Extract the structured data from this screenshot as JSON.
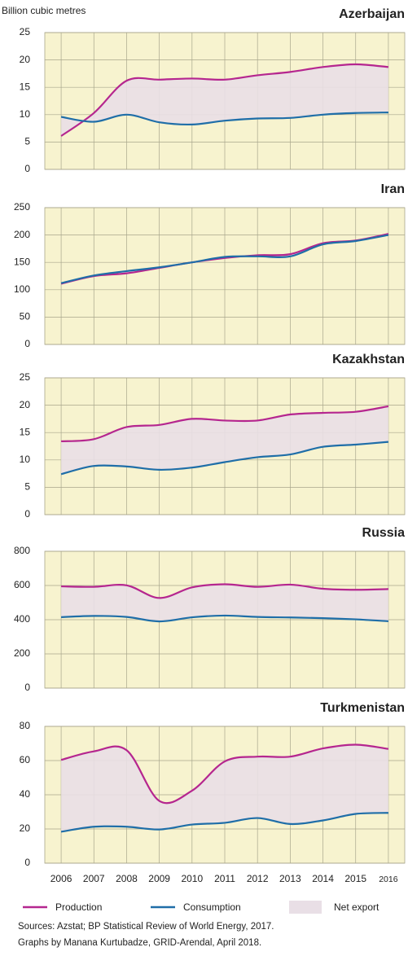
{
  "chart_data": [
    {
      "type": "line",
      "title": "Azerbaijan",
      "y_label": "Billion cubic metres",
      "x": [
        2006,
        2007,
        2008,
        2009,
        2010,
        2011,
        2012,
        2013,
        2014,
        2015,
        2016
      ],
      "xlim": [
        2005.5,
        2016.5
      ],
      "xticks": [
        2006,
        2007,
        2008,
        2009,
        2010,
        2011,
        2012,
        2013,
        2014,
        2015,
        2016
      ],
      "ylim": [
        0,
        25
      ],
      "yticks": [
        0,
        5,
        10,
        15,
        20,
        25
      ],
      "grid": true,
      "area_color": "#e9dfe6",
      "series": [
        {
          "name": "Production",
          "color": "#b5268f",
          "values": [
            6.1,
            10.3,
            16.2,
            16.4,
            16.6,
            16.4,
            17.2,
            17.8,
            18.7,
            19.2,
            18.7
          ]
        },
        {
          "name": "Consumption",
          "color": "#1f6ea8",
          "values": [
            9.6,
            8.7,
            10.0,
            8.6,
            8.2,
            8.9,
            9.3,
            9.4,
            10.0,
            10.3,
            10.4
          ]
        }
      ]
    },
    {
      "type": "line",
      "title": "Iran",
      "x": [
        2006,
        2007,
        2008,
        2009,
        2010,
        2011,
        2012,
        2013,
        2014,
        2015,
        2016
      ],
      "xlim": [
        2005.5,
        2016.5
      ],
      "xticks": [
        2006,
        2007,
        2008,
        2009,
        2010,
        2011,
        2012,
        2013,
        2014,
        2015,
        2016
      ],
      "ylim": [
        0,
        250
      ],
      "yticks": [
        0,
        50,
        100,
        150,
        200,
        250
      ],
      "grid": true,
      "area_color": "#e9dfe6",
      "series": [
        {
          "name": "Production",
          "color": "#b5268f",
          "values": [
            111,
            125,
            130,
            140,
            150,
            158,
            163,
            165,
            185,
            190,
            202
          ]
        },
        {
          "name": "Consumption",
          "color": "#1f6ea8",
          "values": [
            112,
            126,
            134,
            141,
            150,
            160,
            161,
            161,
            183,
            189,
            200
          ]
        }
      ]
    },
    {
      "type": "line",
      "title": "Kazakhstan",
      "x": [
        2006,
        2007,
        2008,
        2009,
        2010,
        2011,
        2012,
        2013,
        2014,
        2015,
        2016
      ],
      "xlim": [
        2005.5,
        2016.5
      ],
      "xticks": [
        2006,
        2007,
        2008,
        2009,
        2010,
        2011,
        2012,
        2013,
        2014,
        2015,
        2016
      ],
      "ylim": [
        0,
        25
      ],
      "yticks": [
        0,
        5,
        10,
        15,
        20,
        25
      ],
      "grid": true,
      "area_color": "#e9dfe6",
      "series": [
        {
          "name": "Production",
          "color": "#b5268f",
          "values": [
            13.4,
            13.8,
            16.0,
            16.4,
            17.5,
            17.2,
            17.2,
            18.3,
            18.6,
            18.8,
            19.8
          ]
        },
        {
          "name": "Consumption",
          "color": "#1f6ea8",
          "values": [
            7.4,
            8.9,
            8.8,
            8.2,
            8.6,
            9.6,
            10.5,
            11.0,
            12.4,
            12.8,
            13.3
          ]
        }
      ]
    },
    {
      "type": "line",
      "title": "Russia",
      "x": [
        2006,
        2007,
        2008,
        2009,
        2010,
        2011,
        2012,
        2013,
        2014,
        2015,
        2016
      ],
      "xlim": [
        2005.5,
        2016.5
      ],
      "xticks": [
        2006,
        2007,
        2008,
        2009,
        2010,
        2011,
        2012,
        2013,
        2014,
        2015,
        2016
      ],
      "ylim": [
        0,
        800
      ],
      "yticks": [
        0,
        200,
        400,
        600,
        800
      ],
      "grid": true,
      "area_color": "#e9dfe6",
      "series": [
        {
          "name": "Production",
          "color": "#b5268f",
          "values": [
            595,
            592,
            601,
            527,
            589,
            607,
            592,
            605,
            581,
            575,
            579
          ]
        },
        {
          "name": "Consumption",
          "color": "#1f6ea8",
          "values": [
            415,
            422,
            416,
            390,
            414,
            424,
            416,
            413,
            409,
            402,
            391
          ]
        }
      ]
    },
    {
      "type": "line",
      "title": "Turkmenistan",
      "x": [
        2006,
        2007,
        2008,
        2009,
        2010,
        2011,
        2012,
        2013,
        2014,
        2015,
        2016
      ],
      "xlim": [
        2005.5,
        2016.5
      ],
      "xticks": [
        2006,
        2007,
        2008,
        2009,
        2010,
        2011,
        2012,
        2013,
        2014,
        2015,
        2016
      ],
      "ylim": [
        0,
        80
      ],
      "yticks": [
        0,
        20,
        40,
        60,
        80
      ],
      "grid": true,
      "area_color": "#e9dfe6",
      "series": [
        {
          "name": "Production",
          "color": "#b5268f",
          "values": [
            60.4,
            65.4,
            66.1,
            36.4,
            42.4,
            59.5,
            62.3,
            62.3,
            67.1,
            69.3,
            66.8
          ]
        },
        {
          "name": "Consumption",
          "color": "#1f6ea8",
          "values": [
            18.4,
            21.3,
            21.3,
            19.7,
            22.6,
            23.6,
            26.4,
            22.9,
            25.0,
            28.8,
            29.4
          ]
        }
      ]
    }
  ],
  "net_export_label": "Net export",
  "notes": [
    "Sources: Azstat; BP Statistical Review of World Energy, 2017.",
    "Graphs by Manana Kurtubadze, GRID-Arendal, April 2018."
  ]
}
